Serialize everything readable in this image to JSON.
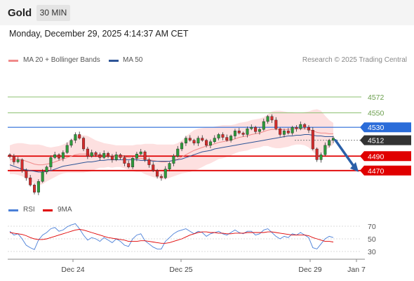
{
  "header": {
    "instrument": "Gold",
    "timeframe": "30 MIN"
  },
  "datetime": "Monday, December 29, 2025 4:14:37 AM CET",
  "legend": {
    "bb": {
      "label": "MA 20 + Bollinger Bands",
      "color": "#f08a8a"
    },
    "ma50": {
      "label": "MA 50",
      "color": "#2e5597"
    },
    "credit": "Research © 2025 Trading Central"
  },
  "rsi_legend": {
    "rsi": {
      "label": "RSI",
      "color": "#4a7fd8"
    },
    "ma9": {
      "label": "9MA",
      "color": "#e00000"
    }
  },
  "chart_data": {
    "type": "candlestick",
    "price_range": [
      4426,
      4611
    ],
    "levels": [
      {
        "value": 4572,
        "label": "4572",
        "kind": "target",
        "color": "#8cc070"
      },
      {
        "value": 4550,
        "label": "4550",
        "kind": "target",
        "color": "#8cc070"
      },
      {
        "value": 4530,
        "label": "4530",
        "kind": "pivot",
        "color": "#2a6cd9"
      },
      {
        "value": 4512,
        "label": "4512",
        "kind": "last",
        "color": "#333333"
      },
      {
        "value": 4490,
        "label": "4490",
        "kind": "support",
        "color": "#e00000"
      },
      {
        "value": 4470,
        "label": "4470",
        "kind": "support",
        "color": "#e00000"
      }
    ],
    "forecast": {
      "from": 4512,
      "to": 4470,
      "direction": "down"
    },
    "x_ticks": [
      "Dec 24",
      "Dec 25",
      "Dec 29",
      "Jan 7"
    ],
    "price_close": [
      4490,
      4482,
      4485,
      4470,
      4460,
      4450,
      4440,
      4455,
      4468,
      4475,
      4488,
      4492,
      4487,
      4495,
      4505,
      4512,
      4520,
      4515,
      4500,
      4490,
      4495,
      4492,
      4488,
      4494,
      4490,
      4485,
      4492,
      4488,
      4480,
      4475,
      4487,
      4493,
      4496,
      4485,
      4478,
      4470,
      4462,
      4460,
      4472,
      4480,
      4490,
      4500,
      4508,
      4515,
      4512,
      4508,
      4515,
      4512,
      4505,
      4510,
      4515,
      4520,
      4516,
      4512,
      4518,
      4525,
      4522,
      4520,
      4528,
      4530,
      4524,
      4527,
      4538,
      4545,
      4540,
      4528,
      4520,
      4525,
      4522,
      4530,
      4528,
      4534,
      4530,
      4526,
      4500,
      4485,
      4492,
      4505,
      4512,
      4515
    ],
    "price_open": [
      4492,
      4490,
      4482,
      4485,
      4470,
      4460,
      4450,
      4440,
      4455,
      4468,
      4475,
      4488,
      4492,
      4487,
      4495,
      4505,
      4512,
      4520,
      4515,
      4500,
      4490,
      4495,
      4492,
      4488,
      4494,
      4490,
      4485,
      4492,
      4488,
      4480,
      4475,
      4487,
      4493,
      4496,
      4485,
      4478,
      4470,
      4462,
      4460,
      4472,
      4480,
      4490,
      4500,
      4508,
      4515,
      4512,
      4508,
      4515,
      4512,
      4505,
      4510,
      4515,
      4520,
      4516,
      4512,
      4518,
      4525,
      4522,
      4520,
      4528,
      4530,
      4524,
      4527,
      4538,
      4545,
      4540,
      4528,
      4520,
      4525,
      4522,
      4530,
      4528,
      4534,
      4530,
      4526,
      4500,
      4485,
      4492,
      4505,
      4512
    ],
    "ma20": [
      4485,
      4486,
      4486,
      4485,
      4483,
      4481,
      4479,
      4478,
      4478,
      4479,
      4480,
      4482,
      4484,
      4486,
      4488,
      4490,
      4492,
      4493,
      4493,
      4493,
      4492,
      4492,
      4492,
      4491,
      4491,
      4490,
      4490,
      4490,
      4489,
      4488,
      4487,
      4487,
      4487,
      4486,
      4485,
      4484,
      4483,
      4482,
      4482,
      4483,
      4484,
      4486,
      4489,
      4492,
      4495,
      4498,
      4500,
      4502,
      4504,
      4505,
      4507,
      4509,
      4510,
      4511,
      4512,
      4514,
      4516,
      4517,
      4518,
      4520,
      4521,
      4522,
      4524,
      4526,
      4527,
      4527,
      4527,
      4527,
      4527,
      4528,
      4528,
      4528,
      4528,
      4527,
      4525,
      4523,
      4522,
      4522,
      4521,
      4521
    ],
    "bb_upper": [
      4505,
      4507,
      4508,
      4508,
      4507,
      4506,
      4506,
      4506,
      4505,
      4503,
      4502,
      4503,
      4504,
      4506,
      4509,
      4513,
      4517,
      4519,
      4519,
      4518,
      4515,
      4512,
      4510,
      4508,
      4507,
      4506,
      4505,
      4505,
      4505,
      4505,
      4505,
      4506,
      4506,
      4507,
      4507,
      4507,
      4506,
      4506,
      4506,
      4506,
      4506,
      4508,
      4512,
      4517,
      4522,
      4526,
      4528,
      4529,
      4530,
      4530,
      4531,
      4532,
      4533,
      4533,
      4533,
      4534,
      4536,
      4537,
      4538,
      4540,
      4541,
      4542,
      4544,
      4548,
      4552,
      4553,
      4553,
      4552,
      4551,
      4551,
      4550,
      4550,
      4551,
      4552,
      4554,
      4555,
      4553,
      4546,
      4540,
      4536
    ],
    "bb_lower": [
      4465,
      4465,
      4464,
      4462,
      4459,
      4456,
      4452,
      4450,
      4451,
      4455,
      4458,
      4461,
      4464,
      4466,
      4467,
      4467,
      4467,
      4467,
      4467,
      4468,
      4469,
      4472,
      4474,
      4474,
      4475,
      4474,
      4475,
      4475,
      4473,
      4471,
      4469,
      4468,
      4468,
      4465,
      4463,
      4461,
      4460,
      4458,
      4458,
      4460,
      4462,
      4464,
      4466,
      4467,
      4468,
      4470,
      4472,
      4475,
      4478,
      4480,
      4483,
      4486,
      4487,
      4489,
      4491,
      4494,
      4496,
      4497,
      4498,
      4500,
      4501,
      4502,
      4504,
      4504,
      4502,
      4501,
      4501,
      4502,
      4503,
      4505,
      4506,
      4506,
      4505,
      4502,
      4496,
      4491,
      4491,
      4498,
      4502,
      4506
    ],
    "ma50": [
      4478,
      4476,
      4474,
      4472,
      4471,
      4470,
      4469,
      4468,
      4468,
      4469,
      4470,
      4472,
      4474,
      4476,
      4477,
      4478,
      4479,
      4480,
      4481,
      4482,
      4482,
      4483,
      4484,
      4484,
      4485,
      4485,
      4485,
      4485,
      4485,
      4485,
      4485,
      4485,
      4484,
      4484,
      4484,
      4483,
      4483,
      4483,
      4483,
      4483,
      4484,
      4485,
      4486,
      4488,
      4490,
      4492,
      4494,
      4496,
      4497,
      4498,
      4500,
      4501,
      4502,
      4503,
      4504,
      4505,
      4506,
      4507,
      4508,
      4509,
      4510,
      4511,
      4512,
      4513,
      4514,
      4515,
      4516,
      4517,
      4518,
      4518,
      4519,
      4519,
      4520,
      4520,
      4519,
      4518,
      4518,
      4517,
      4517,
      4517
    ],
    "rsi_range": [
      20,
      80
    ],
    "rsi_levels": [
      70,
      50,
      30
    ],
    "rsi": [
      62,
      56,
      58,
      50,
      40,
      36,
      33,
      48,
      56,
      60,
      66,
      68,
      62,
      64,
      69,
      72,
      74,
      66,
      56,
      48,
      52,
      50,
      46,
      52,
      48,
      44,
      50,
      46,
      40,
      38,
      50,
      56,
      58,
      47,
      42,
      37,
      34,
      34,
      46,
      52,
      58,
      62,
      64,
      66,
      62,
      58,
      62,
      60,
      54,
      58,
      60,
      62,
      58,
      56,
      60,
      64,
      60,
      58,
      62,
      62,
      56,
      58,
      64,
      66,
      60,
      54,
      50,
      54,
      52,
      58,
      56,
      60,
      56,
      52,
      36,
      34,
      42,
      50,
      54,
      52
    ],
    "rsi_ma9": [
      60,
      59,
      58,
      57,
      55,
      52,
      50,
      49,
      49,
      50,
      52,
      54,
      56,
      58,
      60,
      62,
      64,
      65,
      64,
      62,
      60,
      58,
      56,
      54,
      52,
      51,
      50,
      49,
      48,
      46,
      46,
      46,
      47,
      47,
      46,
      45,
      44,
      43,
      43,
      44,
      46,
      48,
      50,
      53,
      56,
      58,
      60,
      61,
      61,
      60,
      60,
      59,
      59,
      58,
      58,
      59,
      59,
      59,
      60,
      60,
      60,
      60,
      60,
      61,
      61,
      60,
      59,
      58,
      57,
      56,
      56,
      56,
      56,
      55,
      52,
      50,
      48,
      46,
      46,
      45
    ]
  }
}
